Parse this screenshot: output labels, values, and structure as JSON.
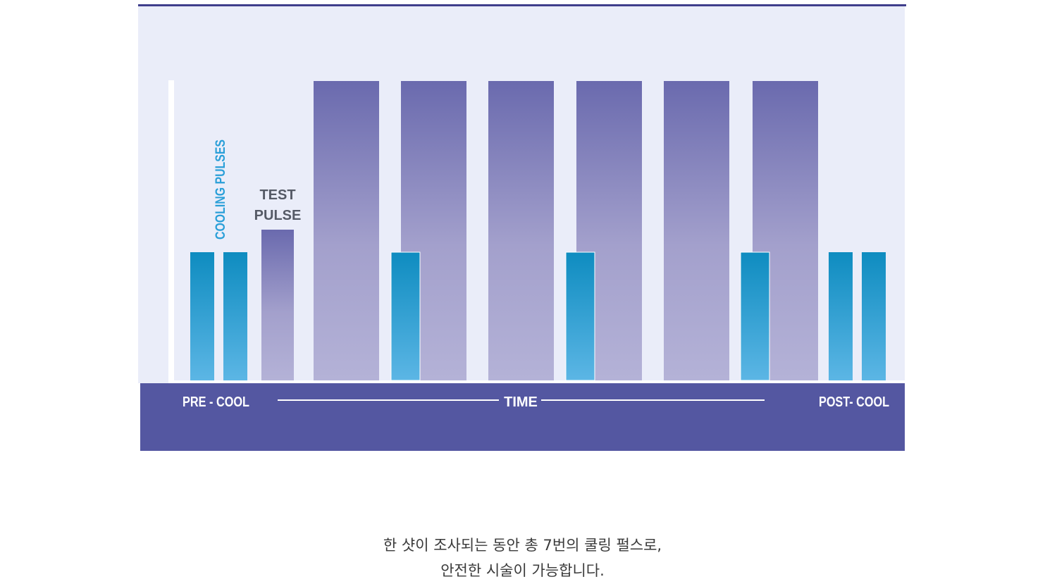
{
  "labels": {
    "cooling_pulses": "COOLING PULSES",
    "test_pulse_line1": "TEST",
    "test_pulse_line2": "PULSE",
    "pre_cool": "PRE - COOL",
    "time": "TIME",
    "post_cool": "POST- COOL"
  },
  "caption": {
    "line1": "한 샷이 조사되는 동안 총 7번의 쿨링 펄스로,",
    "line2": "안전한 시술이 가능합니다."
  },
  "colors": {
    "panel_background": "#eaedf9",
    "top_rule": "#3f3e8c",
    "time_band": "#5457a1",
    "heating_pulse_top": "#6a6aae",
    "heating_pulse_bottom": "#b4b2d7",
    "cooling_pulse_top": "#0e8cc0",
    "cooling_pulse_bottom": "#5cb6e5",
    "cooling_label": "#2a9fd8",
    "test_label": "#555a66",
    "band_text": "#ffffff"
  },
  "pulse_sequence": {
    "pre_cool_cooling_pulses": 2,
    "test_pulses": 1,
    "heating_pulses": 6,
    "interleaved_cooling_pulses": 3,
    "post_cool_cooling_pulses": 2,
    "cooling_pulse_level": 0.43,
    "test_pulse_level": 0.51,
    "heating_pulse_level": 1.0
  }
}
